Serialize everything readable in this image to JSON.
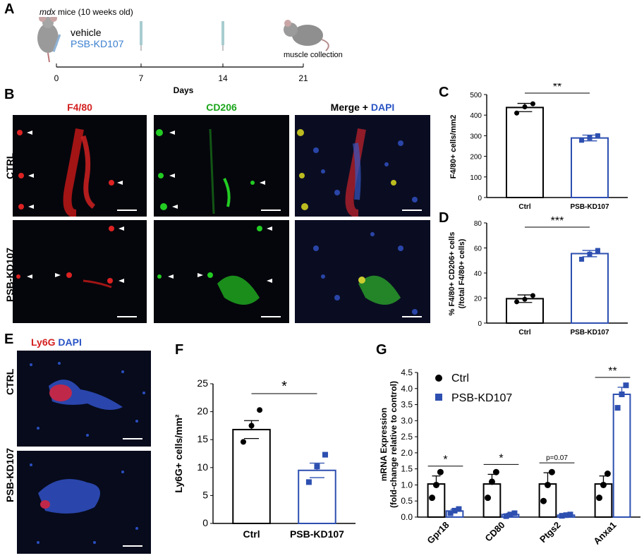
{
  "panels": {
    "A": "A",
    "B": "B",
    "C": "C",
    "D": "D",
    "E": "E",
    "F": "F",
    "G": "G"
  },
  "timeline": {
    "mouse_label_italic": "mdx",
    "mouse_label_rest": " mice (10 weeks old)",
    "treatment_vehicle": "vehicle",
    "treatment_drug": "PSB-KD107",
    "collection_label": "muscle collection",
    "ticks": [
      "0",
      "7",
      "14",
      "21"
    ],
    "axis_label": "Days"
  },
  "panel_B": {
    "col_titles": {
      "f480": "F4/80",
      "cd206": "CD206",
      "merge": "Merge + ",
      "dapi": "DAPI"
    },
    "row_labels": [
      "CTRL",
      "PSB-KD107"
    ]
  },
  "panel_E": {
    "title_ly6g": "Ly6G",
    "title_dapi": " DAPI",
    "row_labels": [
      "CTRL",
      "PSB-KD107"
    ]
  },
  "colors": {
    "red": "#d42020",
    "green": "#1aa51a",
    "blue": "#2a55c5",
    "bar_blue": "#2d4fb0"
  },
  "chart_data": [
    {
      "id": "C",
      "type": "bar",
      "categories": [
        "Ctrl",
        "PSB-KD107"
      ],
      "values": [
        437,
        289
      ],
      "errors": [
        20,
        14
      ],
      "points": [
        [
          410,
          440,
          455
        ],
        [
          278,
          290,
          300
        ]
      ],
      "ylabel": "F4/80+ cells/mm2",
      "ylim": [
        0,
        500
      ],
      "yticks": [
        0,
        100,
        200,
        300,
        400,
        500
      ],
      "significance": "**"
    },
    {
      "id": "D",
      "type": "bar",
      "categories": [
        "Ctrl",
        "PSB-KD107"
      ],
      "values": [
        19.5,
        55.5
      ],
      "errors": [
        3,
        2.5
      ],
      "points": [
        [
          17,
          19,
          22
        ],
        [
          51,
          55,
          58
        ]
      ],
      "ylabel": "% F4/80+ CD206+ cells (/total F4/80+ cells)",
      "ylim": [
        0,
        80
      ],
      "yticks": [
        0,
        20,
        40,
        60,
        80
      ],
      "significance": "***"
    },
    {
      "id": "F",
      "type": "bar",
      "categories": [
        "Ctrl",
        "PSB-KD107"
      ],
      "values": [
        16.8,
        9.5
      ],
      "errors": [
        1.6,
        1.3
      ],
      "points": [
        [
          14.6,
          17.5,
          20.3
        ],
        [
          7.4,
          10.2,
          12.3
        ]
      ],
      "ylabel": "Ly6G+ cells/mm²",
      "ylim": [
        0,
        25
      ],
      "yticks": [
        0,
        5,
        10,
        15,
        20,
        25
      ],
      "significance": "*"
    },
    {
      "id": "G",
      "type": "bar",
      "categories": [
        "Gpr18",
        "CD80",
        "Ptgs2",
        "Anxa1"
      ],
      "series": [
        {
          "name": "Ctrl",
          "values": [
            1.03,
            1.03,
            1.03,
            1.03
          ],
          "errors": [
            0.25,
            0.3,
            0.35,
            0.25
          ],
          "points": [
            [
              0.6,
              1.0,
              1.4
            ],
            [
              0.6,
              1.1,
              1.4
            ],
            [
              0.5,
              1.0,
              1.4
            ],
            [
              0.6,
              1.0,
              1.35
            ]
          ]
        },
        {
          "name": "PSB-KD107",
          "values": [
            0.19,
            0.08,
            0.06,
            3.82
          ],
          "errors": [
            0.05,
            0.04,
            0.02,
            0.22
          ],
          "points": [
            [
              0.12,
              0.2,
              0.25
            ],
            [
              0.03,
              0.08,
              0.12
            ],
            [
              0.04,
              0.06,
              0.08
            ],
            [
              3.4,
              3.82,
              4.1
            ]
          ]
        }
      ],
      "ylabel_line1": "mRNA Expression",
      "ylabel_line2": "(fold-change relative to control)",
      "ylim": [
        0,
        4.5
      ],
      "yticks": [
        "0.0",
        "0.5",
        "1.0",
        "1.5",
        "2.0",
        "2.5",
        "3.0",
        "3.5",
        "4.0",
        "4.5"
      ],
      "annotations": [
        "*",
        "*",
        "p=0.07",
        "**"
      ]
    }
  ]
}
